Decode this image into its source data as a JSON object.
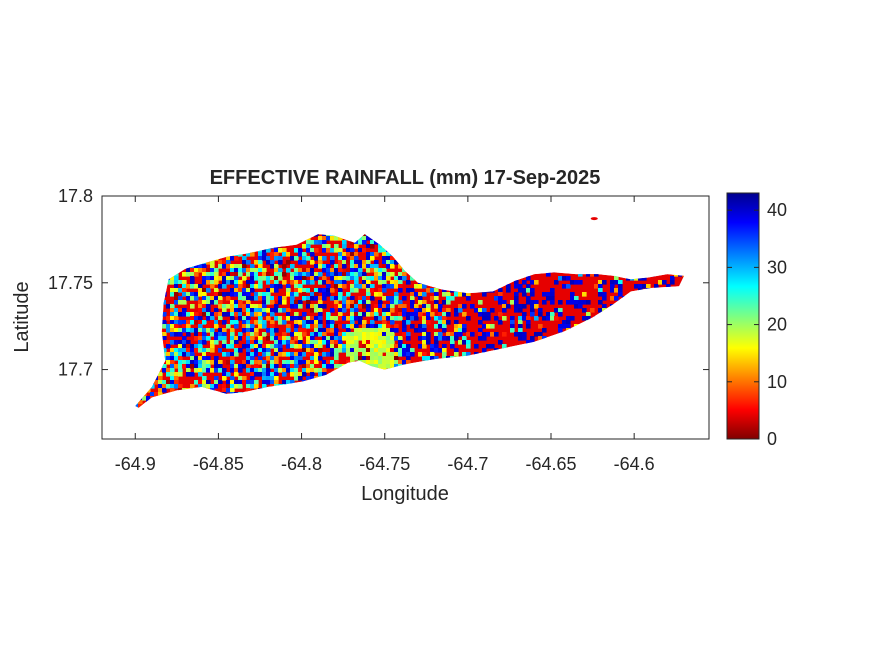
{
  "chart_data": {
    "type": "heatmap",
    "title": "EFFECTIVE RAINFALL (mm) 17-Sep-2025",
    "xlabel": "Longitude",
    "ylabel": "Latitude",
    "xlim": [
      -64.92,
      -64.555
    ],
    "ylim": [
      17.66,
      17.8
    ],
    "xticks": [
      -64.9,
      -64.85,
      -64.8,
      -64.75,
      -64.7,
      -64.65,
      -64.6
    ],
    "xtick_labels": [
      "-64.9",
      "-64.85",
      "-64.8",
      "-64.75",
      "-64.7",
      "-64.65",
      "-64.6"
    ],
    "yticks": [
      17.7,
      17.75,
      17.8
    ],
    "ytick_labels": [
      "17.7",
      "17.75",
      "17.8"
    ],
    "colorbar": {
      "colormap": "jet",
      "range": [
        0,
        43
      ],
      "ticks": [
        0,
        10,
        20,
        30,
        40
      ],
      "tick_labels": [
        "0",
        "10",
        "20",
        "30",
        "40"
      ],
      "colors": [
        "#00008f",
        "#0000ff",
        "#00ffff",
        "#ffff00",
        "#ff0000",
        "#800000"
      ]
    },
    "grid": false,
    "island_outline_lonlat": [
      [
        -64.9,
        17.679
      ],
      [
        -64.89,
        17.69
      ],
      [
        -64.882,
        17.705
      ],
      [
        -64.884,
        17.722
      ],
      [
        -64.883,
        17.738
      ],
      [
        -64.88,
        17.752
      ],
      [
        -64.87,
        17.758
      ],
      [
        -64.856,
        17.762
      ],
      [
        -64.845,
        17.765
      ],
      [
        -64.832,
        17.767
      ],
      [
        -64.818,
        17.77
      ],
      [
        -64.803,
        17.772
      ],
      [
        -64.79,
        17.778
      ],
      [
        -64.78,
        17.777
      ],
      [
        -64.768,
        17.773
      ],
      [
        -64.762,
        17.778
      ],
      [
        -64.753,
        17.772
      ],
      [
        -64.745,
        17.765
      ],
      [
        -64.738,
        17.757
      ],
      [
        -64.73,
        17.75
      ],
      [
        -64.715,
        17.746
      ],
      [
        -64.7,
        17.744
      ],
      [
        -64.685,
        17.745
      ],
      [
        -64.672,
        17.751
      ],
      [
        -64.66,
        17.755
      ],
      [
        -64.648,
        17.756
      ],
      [
        -64.635,
        17.755
      ],
      [
        -64.622,
        17.755
      ],
      [
        -64.612,
        17.754
      ],
      [
        -64.602,
        17.752
      ],
      [
        -64.592,
        17.753
      ],
      [
        -64.58,
        17.755
      ],
      [
        -64.57,
        17.754
      ],
      [
        -64.573,
        17.748
      ],
      [
        -64.59,
        17.747
      ],
      [
        -64.602,
        17.745
      ],
      [
        -64.612,
        17.738
      ],
      [
        -64.625,
        17.73
      ],
      [
        -64.642,
        17.722
      ],
      [
        -64.66,
        17.716
      ],
      [
        -64.68,
        17.712
      ],
      [
        -64.7,
        17.708
      ],
      [
        -64.72,
        17.706
      ],
      [
        -64.738,
        17.703
      ],
      [
        -64.75,
        17.7
      ],
      [
        -64.758,
        17.702
      ],
      [
        -64.765,
        17.705
      ],
      [
        -64.772,
        17.704
      ],
      [
        -64.785,
        17.697
      ],
      [
        -64.8,
        17.693
      ],
      [
        -64.82,
        17.69
      ],
      [
        -64.835,
        17.687
      ],
      [
        -64.845,
        17.686
      ],
      [
        -64.86,
        17.69
      ],
      [
        -64.875,
        17.688
      ],
      [
        -64.89,
        17.684
      ],
      [
        -64.898,
        17.678
      ]
    ],
    "islet_lonlat": [
      -64.624,
      17.787
    ]
  }
}
